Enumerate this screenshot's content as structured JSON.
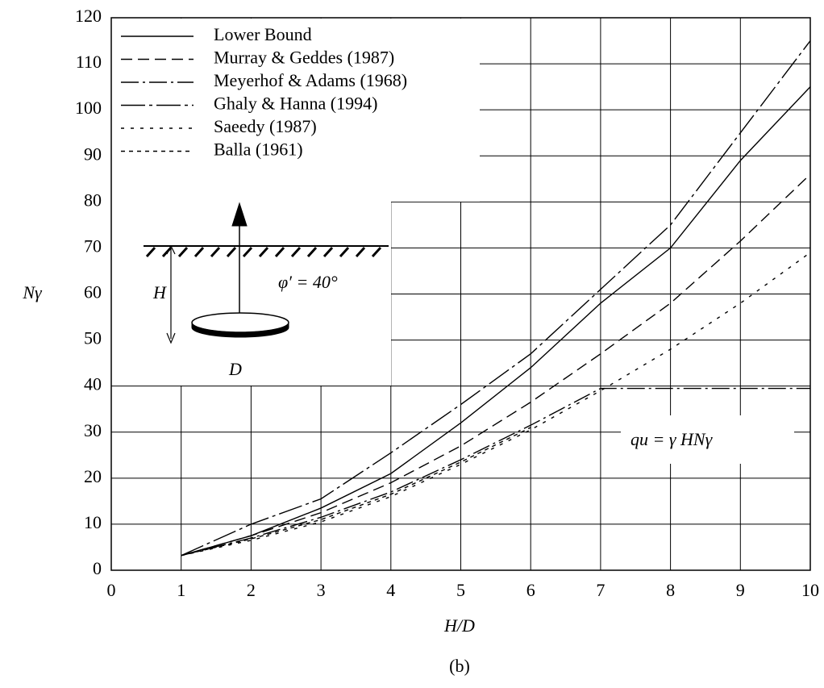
{
  "chart_data": {
    "type": "line",
    "x": [
      1,
      2,
      3,
      4,
      5,
      6,
      7,
      8,
      9,
      10
    ],
    "series": [
      {
        "name": "Lower Bound",
        "color": "#000000",
        "dash": "none",
        "values": [
          3.2,
          7.5,
          13.5,
          21,
          32,
          44,
          58,
          70,
          89,
          105
        ]
      },
      {
        "name": "Murray & Geddes (1987)",
        "color": "#000000",
        "dash": "14,7",
        "values": [
          3.2,
          7.5,
          12.5,
          19,
          27,
          36.5,
          47,
          58,
          71.5,
          86
        ]
      },
      {
        "name": "Meyerhof & Adams (1968)",
        "color": "#000000",
        "dash": "22,5,3,5",
        "values": [
          3.2,
          7,
          11.5,
          17,
          24,
          31.5,
          39.5,
          39.5,
          39.5,
          39.5
        ]
      },
      {
        "name": "Ghaly & Hanna (1994)",
        "color": "#000000",
        "dash": "30,5,4,5",
        "values": [
          3.2,
          10,
          15.5,
          25.5,
          36,
          47,
          61,
          75,
          95,
          115
        ]
      },
      {
        "name": "Saeedy (1987)",
        "color": "#000000",
        "dash": "4,8",
        "values": [
          3.2,
          6.5,
          10.5,
          16,
          23,
          30.5,
          39,
          48,
          58,
          69
        ]
      },
      {
        "name": "Balla (1961)",
        "color": "#000000",
        "dash": "5,5",
        "values": [
          3.2,
          6.8,
          11,
          16.5,
          23.5,
          31,
          null,
          null,
          null,
          null
        ]
      }
    ],
    "xlim": [
      0,
      10
    ],
    "xticks": [
      0,
      1,
      2,
      3,
      4,
      5,
      6,
      7,
      8,
      9,
      10
    ],
    "ylim": [
      0,
      120
    ],
    "yticks": [
      0,
      10,
      20,
      30,
      40,
      50,
      60,
      70,
      80,
      90,
      100,
      110,
      120
    ],
    "grid": true,
    "xlabel": "H/D",
    "ylabel": "Nγ",
    "caption": "(b)",
    "annotations": {
      "angle": "φ′ = 40°",
      "formula": "qu = γ HNγ",
      "depth": "H",
      "diameter": "D"
    }
  }
}
